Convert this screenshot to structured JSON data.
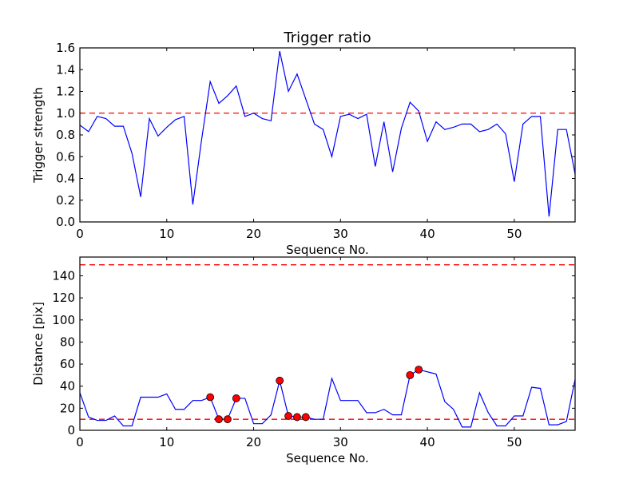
{
  "chart_data": [
    {
      "type": "line",
      "title": "Trigger ratio",
      "xlabel": "Sequence No.",
      "ylabel": "Trigger strength",
      "xlim": [
        0,
        57
      ],
      "ylim": [
        0,
        1.6
      ],
      "xticks": [
        "0",
        "10",
        "20",
        "30",
        "40",
        "50"
      ],
      "yticks": [
        "0.0",
        "0.2",
        "0.4",
        "0.6",
        "0.8",
        "1.0",
        "1.2",
        "1.4",
        "1.6"
      ],
      "threshold_lines": [
        1.0
      ],
      "series": [
        {
          "name": "trigger ratio",
          "color": "#0000ff",
          "values": [
            0.89,
            0.83,
            0.97,
            0.95,
            0.88,
            0.88,
            0.63,
            0.23,
            0.95,
            0.79,
            0.87,
            0.94,
            0.97,
            0.16,
            0.75,
            1.29,
            1.09,
            1.16,
            1.25,
            0.97,
            1.0,
            0.95,
            0.93,
            1.57,
            1.2,
            1.36,
            1.13,
            0.9,
            0.85,
            0.6,
            0.97,
            0.99,
            0.95,
            0.99,
            0.51,
            0.92,
            0.46,
            0.86,
            1.1,
            1.02,
            0.74,
            0.92,
            0.85,
            0.87,
            0.9,
            0.9,
            0.83,
            0.85,
            0.9,
            0.81,
            0.37,
            0.9,
            0.97,
            0.97,
            0.05,
            0.85,
            0.85,
            0.44
          ]
        }
      ]
    },
    {
      "type": "line",
      "title": "",
      "xlabel": "Sequence No.",
      "ylabel": "Distance [pix]",
      "xlim": [
        0,
        57
      ],
      "ylim": [
        0,
        157
      ],
      "xticks": [
        "0",
        "10",
        "20",
        "30",
        "40",
        "50"
      ],
      "yticks": [
        "0",
        "20",
        "40",
        "60",
        "80",
        "100",
        "120",
        "140"
      ],
      "threshold_lines": [
        10,
        150
      ],
      "series": [
        {
          "name": "distance",
          "color": "#0000ff",
          "values": [
            34,
            12,
            9,
            9,
            13,
            4,
            4,
            30,
            30,
            30,
            33,
            19,
            19,
            27,
            27,
            30,
            10,
            10,
            29,
            29,
            6,
            6,
            14,
            45,
            13,
            12,
            12,
            10,
            10,
            47,
            27,
            27,
            27,
            16,
            16,
            19,
            14,
            14,
            50,
            55,
            53,
            51,
            26,
            19,
            3,
            3,
            34,
            16,
            4,
            4,
            13,
            13,
            39,
            38,
            5,
            5,
            8,
            46
          ]
        }
      ],
      "markers": {
        "color": "#ff0000",
        "indices": [
          15,
          16,
          17,
          18,
          23,
          24,
          25,
          26,
          38,
          39
        ]
      }
    }
  ]
}
